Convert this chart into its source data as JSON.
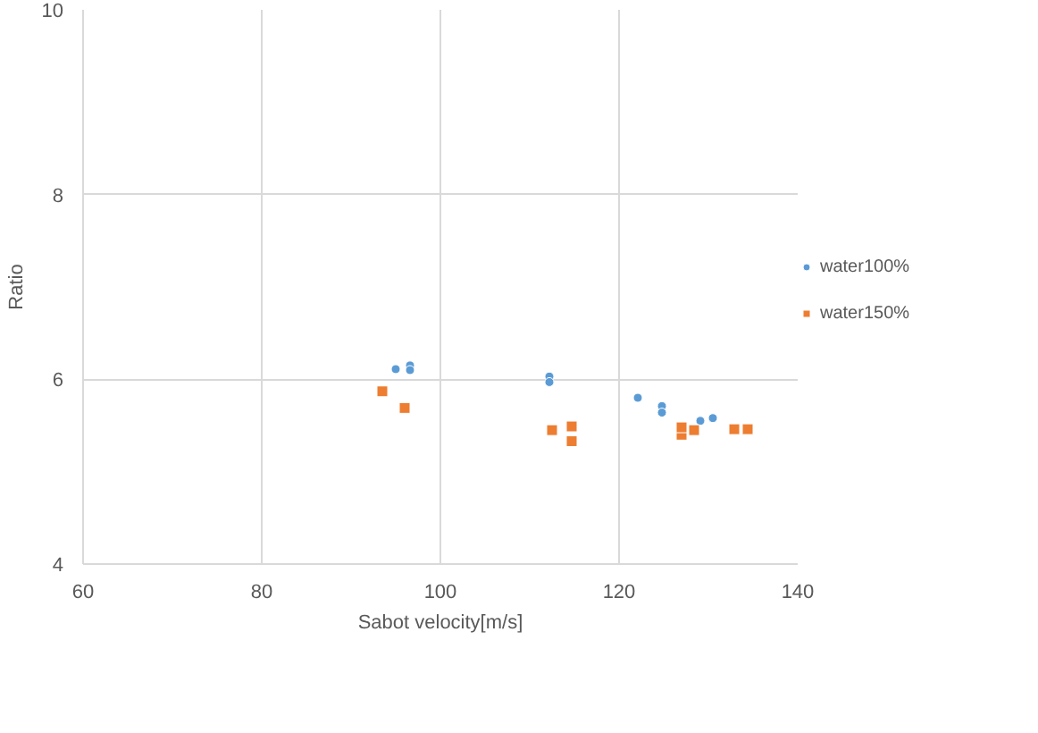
{
  "chart_data": {
    "type": "scatter",
    "xlabel": "Sabot velocity[m/s]",
    "ylabel": "Ratio",
    "xlim": [
      60,
      140
    ],
    "xticks": [
      60,
      80,
      100,
      120,
      140
    ],
    "ylim": [
      4,
      10
    ],
    "yticks": [
      4,
      6,
      8,
      10
    ],
    "grid": true,
    "legend": "right",
    "series": [
      {
        "name": "water100%",
        "color": "#5b9bd5",
        "marker": "circle",
        "x": [
          95,
          96.6,
          96.6,
          112.2,
          112.2,
          122.1,
          124.8,
          124.8,
          129.1,
          130.5
        ],
        "values": [
          6.11,
          6.15,
          6.1,
          6.03,
          5.97,
          5.8,
          5.71,
          5.64,
          5.55,
          5.58
        ]
      },
      {
        "name": "water150%",
        "color": "#ed7d31",
        "marker": "square",
        "x": [
          93.5,
          96,
          112.5,
          114.7,
          114.7,
          127,
          127,
          128.4,
          132.9,
          134.4
        ],
        "values": [
          5.87,
          5.69,
          5.45,
          5.49,
          5.33,
          5.4,
          5.48,
          5.45,
          5.46,
          5.46
        ]
      }
    ]
  }
}
